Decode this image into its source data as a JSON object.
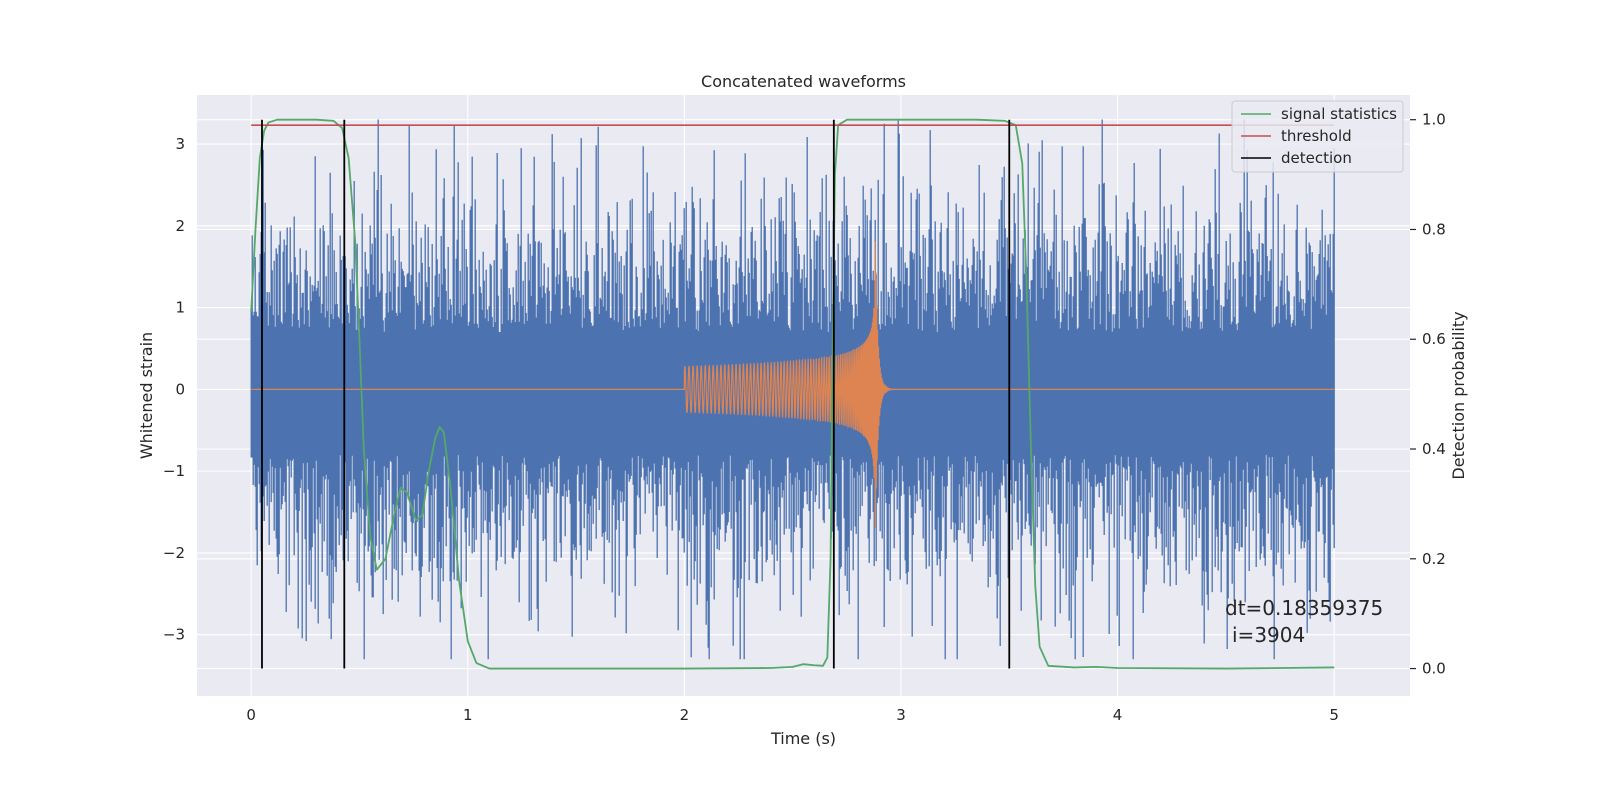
{
  "chart_data": {
    "type": "line",
    "title": "Concatenated waveforms",
    "xlabel": "Time (s)",
    "ylabel": "Whitened strain",
    "y2label": "Detection probability",
    "xlim": [
      -0.25,
      5.35
    ],
    "ylim": [
      -3.75,
      3.6
    ],
    "y2lim": [
      -0.05,
      1.045
    ],
    "xticks": [
      0,
      1,
      2,
      3,
      4,
      5
    ],
    "yticks": [
      -3,
      -2,
      -1,
      0,
      1,
      2,
      3
    ],
    "y2ticks": [
      0.0,
      0.2,
      0.4,
      0.6,
      0.8,
      1.0
    ],
    "xtick_labels": [
      "0",
      "1",
      "2",
      "3",
      "4",
      "5"
    ],
    "ytick_labels": [
      "−3",
      "−2",
      "−1",
      "0",
      "1",
      "2",
      "3"
    ],
    "y2tick_labels": [
      "0.0",
      "0.2",
      "0.4",
      "0.6",
      "0.8",
      "1.0"
    ],
    "grid": true,
    "legend_position": "top-right",
    "colors": {
      "background": "#eaeaf2",
      "grid": "#ffffff",
      "strain": "#4c72b0",
      "waveform": "#dd8452",
      "signal_statistics": "#55a868",
      "threshold": "#c44e52",
      "detection": "#000000"
    },
    "series": [
      {
        "name": "signal statistics",
        "axis": "right",
        "points": [
          [
            0.0,
            0.65
          ],
          [
            0.02,
            0.8
          ],
          [
            0.04,
            0.93
          ],
          [
            0.06,
            0.98
          ],
          [
            0.08,
            0.995
          ],
          [
            0.12,
            1.0
          ],
          [
            0.3,
            1.0
          ],
          [
            0.38,
            0.998
          ],
          [
            0.42,
            0.985
          ],
          [
            0.45,
            0.93
          ],
          [
            0.48,
            0.78
          ],
          [
            0.5,
            0.6
          ],
          [
            0.52,
            0.4
          ],
          [
            0.55,
            0.24
          ],
          [
            0.58,
            0.18
          ],
          [
            0.62,
            0.2
          ],
          [
            0.66,
            0.28
          ],
          [
            0.69,
            0.33
          ],
          [
            0.72,
            0.32
          ],
          [
            0.76,
            0.27
          ],
          [
            0.79,
            0.28
          ],
          [
            0.82,
            0.36
          ],
          [
            0.85,
            0.42
          ],
          [
            0.87,
            0.44
          ],
          [
            0.89,
            0.43
          ],
          [
            0.92,
            0.33
          ],
          [
            0.96,
            0.16
          ],
          [
            1.0,
            0.05
          ],
          [
            1.04,
            0.01
          ],
          [
            1.1,
            0.0
          ],
          [
            1.5,
            0.0
          ],
          [
            2.0,
            0.0
          ],
          [
            2.4,
            0.001
          ],
          [
            2.5,
            0.003
          ],
          [
            2.55,
            0.008
          ],
          [
            2.6,
            0.006
          ],
          [
            2.64,
            0.005
          ],
          [
            2.66,
            0.02
          ],
          [
            2.675,
            0.2
          ],
          [
            2.685,
            0.6
          ],
          [
            2.695,
            0.9
          ],
          [
            2.71,
            0.99
          ],
          [
            2.75,
            1.0
          ],
          [
            3.0,
            1.0
          ],
          [
            3.35,
            1.0
          ],
          [
            3.48,
            0.998
          ],
          [
            3.53,
            0.99
          ],
          [
            3.56,
            0.92
          ],
          [
            3.58,
            0.7
          ],
          [
            3.6,
            0.4
          ],
          [
            3.62,
            0.15
          ],
          [
            3.64,
            0.04
          ],
          [
            3.68,
            0.005
          ],
          [
            3.8,
            0.002
          ],
          [
            3.9,
            0.003
          ],
          [
            4.0,
            0.001
          ],
          [
            4.5,
            0.0
          ],
          [
            5.0,
            0.002
          ]
        ]
      },
      {
        "name": "threshold",
        "axis": "right",
        "points": [
          [
            0.0,
            0.99
          ],
          [
            5.0,
            0.99
          ]
        ]
      },
      {
        "name": "detection",
        "axis": "right",
        "x": [
          0.05,
          0.43,
          2.69,
          3.5
        ],
        "y_range": [
          0.0,
          1.0
        ]
      }
    ],
    "strain_series": {
      "axis": "left",
      "x_range": [
        0,
        5
      ],
      "peak_amplitude": 3.3,
      "note_values": "noise"
    },
    "waveform_series": {
      "axis": "left",
      "x_range": [
        2.0,
        2.88
      ],
      "start_amplitude": 0.28,
      "peak_amplitude": 2.0,
      "ringdown_end": 3.0
    },
    "annotation": [
      "dt=0.18359375",
      "i=3904"
    ]
  }
}
